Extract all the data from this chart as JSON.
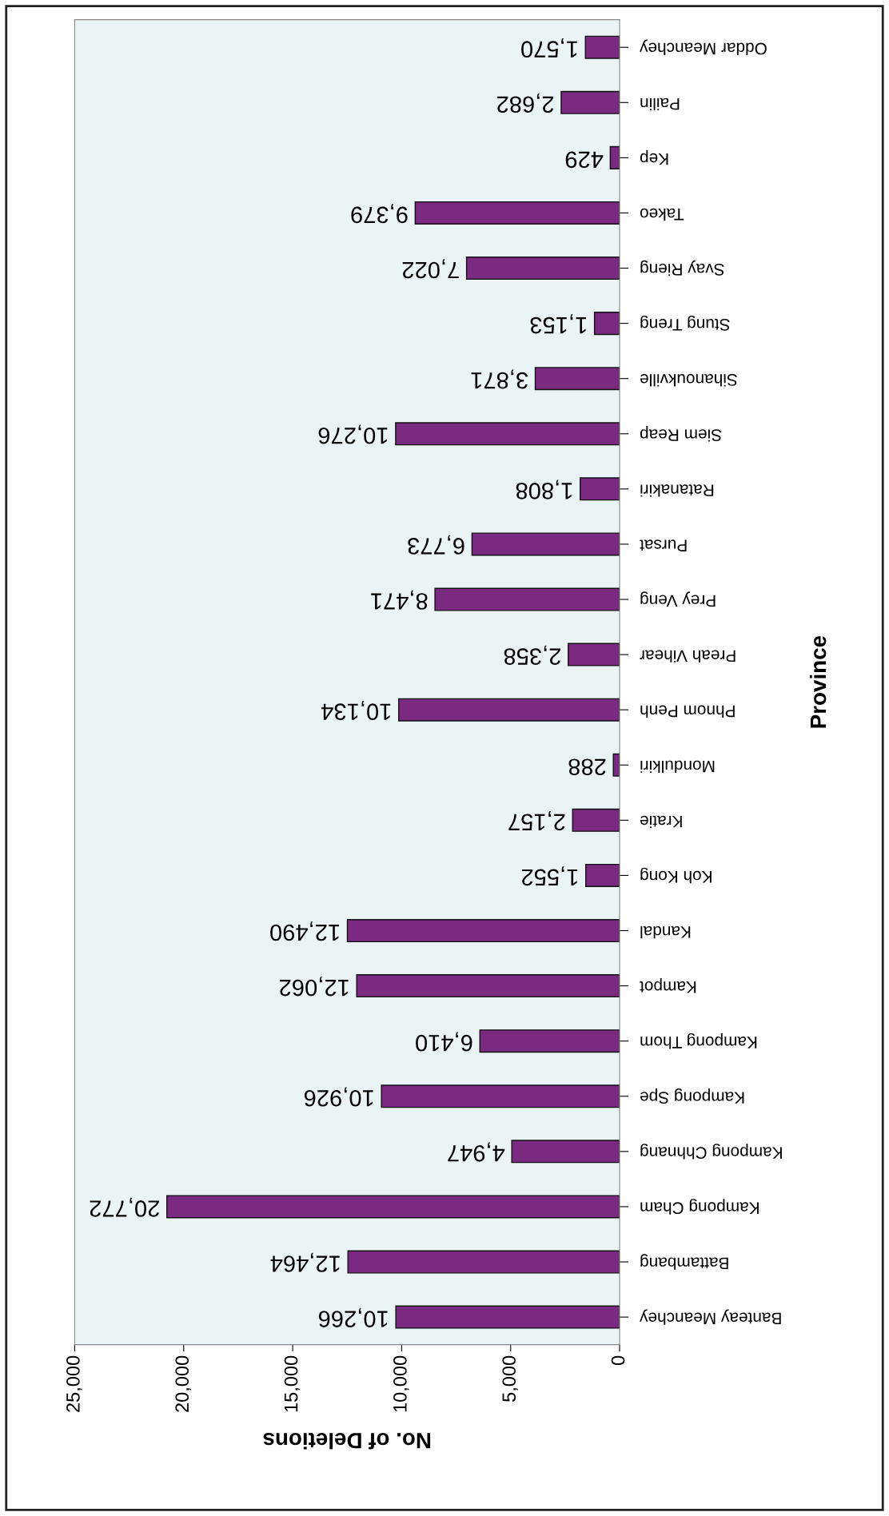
{
  "chart_data": {
    "type": "bar",
    "orientation": "horizontal",
    "xlabel": "No. of Deletions",
    "ylabel": "Province",
    "categories": [
      "Oddar Meanchey",
      "Pailin",
      "Kep",
      "Takeo",
      "Svay Rieng",
      "Stung Treng",
      "Sihanoukville",
      "Siem Reap",
      "Ratanakiri",
      "Pursat",
      "Prey Veng",
      "Preah Vihear",
      "Phnom Penh",
      "Mondulkiri",
      "Kratie",
      "Koh Kong",
      "Kandal",
      "Kampot",
      "Kampong Thom",
      "Kampong Spe",
      "Kampong Chhnang",
      "Kampong Cham",
      "Battambang",
      "Banteay Meanchey"
    ],
    "values": [
      1570,
      2682,
      429,
      9379,
      7022,
      1153,
      3871,
      10276,
      1808,
      6773,
      8471,
      2358,
      10134,
      288,
      2157,
      1552,
      12490,
      12062,
      6410,
      10926,
      4947,
      20772,
      12464,
      10266
    ],
    "color": "#7a2a80",
    "xlim": [
      25000,
      0
    ],
    "xticks": [
      {
        "value": 25000,
        "label": "25,000"
      },
      {
        "value": 20000,
        "label": "20,000"
      },
      {
        "value": 15000,
        "label": "15,000"
      },
      {
        "value": 10000,
        "label": "10,000"
      },
      {
        "value": 5000,
        "label": "5,000"
      },
      0
    ],
    "value_labels": [
      "1,570",
      "2,682",
      "429",
      "9,379",
      "7,022",
      "1,153",
      "3,871",
      "10,276",
      "1,808",
      "6,773",
      "8,471",
      "2,358",
      "10,134",
      "288",
      "2,157",
      "1,552",
      "12,490",
      "12,062",
      "6,410",
      "10,926",
      "4,947",
      "20,772",
      "12,464",
      "10,266"
    ],
    "grid": false,
    "legend": false
  }
}
